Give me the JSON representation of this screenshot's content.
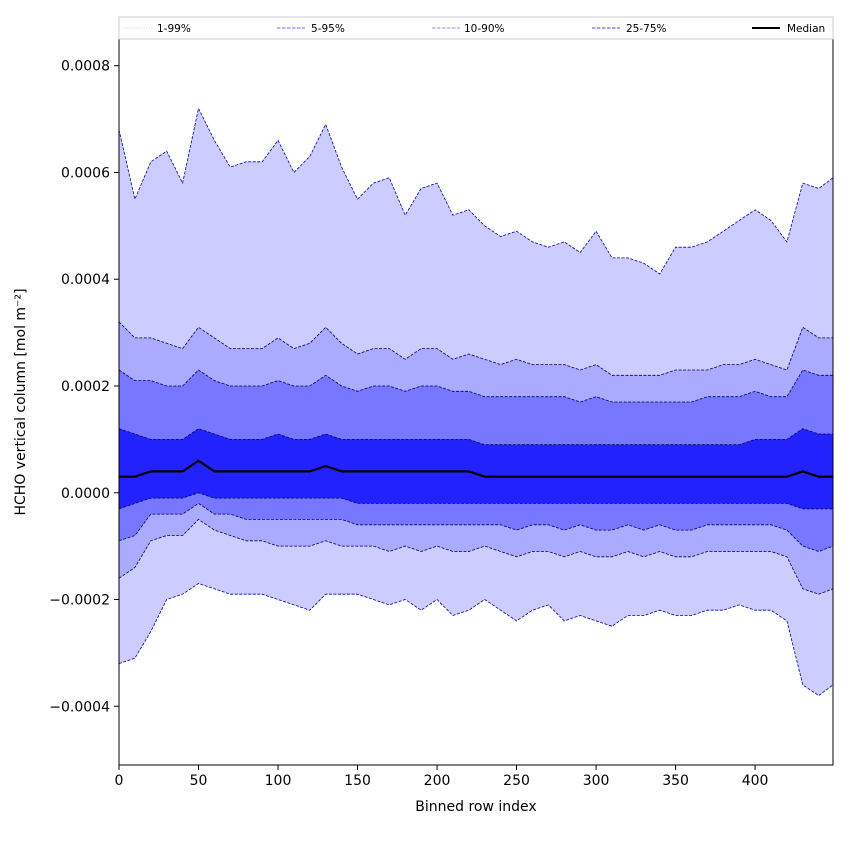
{
  "chart_data": {
    "type": "area",
    "title": "",
    "xlabel": "Binned row index",
    "ylabel": "HCHO vertical column [mol m⁻²]",
    "xlim": [
      0,
      449
    ],
    "ylim": [
      -0.00051,
      0.00085
    ],
    "x_ticks": [
      0,
      50,
      100,
      150,
      200,
      250,
      300,
      350,
      400
    ],
    "x_tick_labels": [
      "0",
      "50",
      "100",
      "150",
      "200",
      "250",
      "300",
      "350",
      "400"
    ],
    "y_ticks": [
      -0.0004,
      -0.0002,
      0.0,
      0.0002,
      0.0004,
      0.0006,
      0.0008
    ],
    "y_tick_labels": [
      "−0.0004",
      "−0.0002",
      "0.0000",
      "0.0002",
      "0.0004",
      "0.0006",
      "0.0008"
    ],
    "grid": false,
    "legend_position": "top, spanning full width",
    "legend": [
      {
        "label": "1-99%",
        "style": "dotted",
        "color": "#ccccff"
      },
      {
        "label": "5-95%",
        "style": "dashed",
        "color": "#6666ff"
      },
      {
        "label": "10-90%",
        "style": "dashed",
        "color": "#8888ff"
      },
      {
        "label": "25-75%",
        "style": "dashed",
        "color": "#4444ff"
      },
      {
        "label": "Median",
        "style": "solid",
        "color": "#000000"
      }
    ],
    "x": [
      0,
      10,
      20,
      30,
      40,
      50,
      60,
      70,
      80,
      90,
      100,
      110,
      120,
      130,
      140,
      150,
      160,
      170,
      180,
      190,
      200,
      210,
      220,
      230,
      240,
      250,
      260,
      270,
      280,
      290,
      300,
      310,
      320,
      330,
      340,
      350,
      360,
      370,
      380,
      390,
      400,
      410,
      420,
      430,
      440,
      449
    ],
    "bands": [
      {
        "name": "1-99%",
        "color": "#ccccff",
        "lower": [
          -0.00032,
          -0.00031,
          -0.00026,
          -0.0002,
          -0.00019,
          -0.00017,
          -0.00018,
          -0.00019,
          -0.00019,
          -0.00019,
          -0.0002,
          -0.00021,
          -0.00022,
          -0.00019,
          -0.00019,
          -0.00019,
          -0.0002,
          -0.00021,
          -0.0002,
          -0.00022,
          -0.0002,
          -0.00023,
          -0.00022,
          -0.0002,
          -0.00022,
          -0.00024,
          -0.00022,
          -0.00021,
          -0.00024,
          -0.00023,
          -0.00024,
          -0.00025,
          -0.00023,
          -0.00023,
          -0.00022,
          -0.00023,
          -0.00023,
          -0.00022,
          -0.00022,
          -0.00021,
          -0.00022,
          -0.00022,
          -0.00024,
          -0.00036,
          -0.00038,
          -0.00036
        ],
        "upper": [
          0.00068,
          0.00055,
          0.00062,
          0.00064,
          0.00058,
          0.00072,
          0.00066,
          0.00061,
          0.00062,
          0.00062,
          0.00066,
          0.0006,
          0.00063,
          0.00069,
          0.00061,
          0.00055,
          0.00058,
          0.00059,
          0.00052,
          0.00057,
          0.00058,
          0.00052,
          0.00053,
          0.0005,
          0.00048,
          0.00049,
          0.00047,
          0.00046,
          0.00047,
          0.00045,
          0.00049,
          0.00044,
          0.00044,
          0.00043,
          0.00041,
          0.00046,
          0.00046,
          0.00047,
          0.00049,
          0.00051,
          0.00053,
          0.00051,
          0.00047,
          0.00058,
          0.00057,
          0.00059
        ]
      },
      {
        "name": "5-95%",
        "color": "#aaaaff",
        "lower": [
          -0.00016,
          -0.00014,
          -9e-05,
          -8e-05,
          -8e-05,
          -5e-05,
          -7e-05,
          -8e-05,
          -9e-05,
          -9e-05,
          -0.0001,
          -0.0001,
          -0.0001,
          -9e-05,
          -0.0001,
          -0.0001,
          -0.0001,
          -0.00011,
          -0.0001,
          -0.00011,
          -0.0001,
          -0.00011,
          -0.00011,
          -0.0001,
          -0.00011,
          -0.00012,
          -0.00011,
          -0.00011,
          -0.00012,
          -0.00011,
          -0.00012,
          -0.00012,
          -0.00011,
          -0.00012,
          -0.00011,
          -0.00012,
          -0.00012,
          -0.00011,
          -0.00011,
          -0.00011,
          -0.00011,
          -0.00011,
          -0.00012,
          -0.00018,
          -0.00019,
          -0.00018
        ],
        "upper": [
          0.00032,
          0.00029,
          0.00029,
          0.00028,
          0.00027,
          0.00031,
          0.00029,
          0.00027,
          0.00027,
          0.00027,
          0.00029,
          0.00027,
          0.00028,
          0.00031,
          0.00028,
          0.00026,
          0.00027,
          0.00027,
          0.00025,
          0.00027,
          0.00027,
          0.00025,
          0.00026,
          0.00025,
          0.00024,
          0.00025,
          0.00024,
          0.00024,
          0.00024,
          0.00023,
          0.00024,
          0.00022,
          0.00022,
          0.00022,
          0.00022,
          0.00023,
          0.00023,
          0.00023,
          0.00024,
          0.00024,
          0.00025,
          0.00024,
          0.00023,
          0.00031,
          0.00029,
          0.00029
        ]
      },
      {
        "name": "10-90%",
        "color": "#7777ff",
        "lower": [
          -9e-05,
          -8e-05,
          -4e-05,
          -4e-05,
          -4e-05,
          -2e-05,
          -4e-05,
          -4e-05,
          -5e-05,
          -5e-05,
          -5e-05,
          -5e-05,
          -5e-05,
          -5e-05,
          -5e-05,
          -6e-05,
          -6e-05,
          -6e-05,
          -6e-05,
          -6e-05,
          -6e-05,
          -6e-05,
          -6e-05,
          -6e-05,
          -6e-05,
          -7e-05,
          -6e-05,
          -6e-05,
          -7e-05,
          -6e-05,
          -7e-05,
          -7e-05,
          -6e-05,
          -7e-05,
          -6e-05,
          -7e-05,
          -7e-05,
          -6e-05,
          -6e-05,
          -6e-05,
          -6e-05,
          -6e-05,
          -7e-05,
          -0.0001,
          -0.00011,
          -0.0001
        ],
        "upper": [
          0.00023,
          0.00021,
          0.00021,
          0.0002,
          0.0002,
          0.00023,
          0.00021,
          0.0002,
          0.0002,
          0.0002,
          0.00021,
          0.0002,
          0.0002,
          0.00022,
          0.0002,
          0.00019,
          0.0002,
          0.0002,
          0.00019,
          0.0002,
          0.0002,
          0.00019,
          0.00019,
          0.00018,
          0.00018,
          0.00018,
          0.00018,
          0.00018,
          0.00018,
          0.00017,
          0.00018,
          0.00017,
          0.00017,
          0.00017,
          0.00017,
          0.00017,
          0.00017,
          0.00018,
          0.00018,
          0.00018,
          0.00019,
          0.00018,
          0.00018,
          0.00023,
          0.00022,
          0.00022
        ]
      },
      {
        "name": "25-75%",
        "color": "#2222ff",
        "lower": [
          -3e-05,
          -2e-05,
          -1e-05,
          -1e-05,
          -1e-05,
          0.0,
          -1e-05,
          -1e-05,
          -1e-05,
          -1e-05,
          -1e-05,
          -1e-05,
          -1e-05,
          -1e-05,
          -1e-05,
          -2e-05,
          -2e-05,
          -2e-05,
          -2e-05,
          -2e-05,
          -2e-05,
          -2e-05,
          -2e-05,
          -2e-05,
          -2e-05,
          -2e-05,
          -2e-05,
          -2e-05,
          -2e-05,
          -2e-05,
          -2e-05,
          -2e-05,
          -2e-05,
          -2e-05,
          -2e-05,
          -2e-05,
          -2e-05,
          -2e-05,
          -2e-05,
          -2e-05,
          -2e-05,
          -2e-05,
          -2e-05,
          -3e-05,
          -3e-05,
          -3e-05
        ],
        "upper": [
          0.00012,
          0.00011,
          0.0001,
          0.0001,
          0.0001,
          0.00012,
          0.00011,
          0.0001,
          0.0001,
          0.0001,
          0.00011,
          0.0001,
          0.0001,
          0.00011,
          0.0001,
          0.0001,
          0.0001,
          0.0001,
          0.0001,
          0.0001,
          0.0001,
          0.0001,
          0.0001,
          9e-05,
          9e-05,
          9e-05,
          9e-05,
          9e-05,
          9e-05,
          9e-05,
          9e-05,
          9e-05,
          9e-05,
          9e-05,
          9e-05,
          9e-05,
          9e-05,
          9e-05,
          9e-05,
          9e-05,
          0.0001,
          0.0001,
          0.0001,
          0.00012,
          0.00011,
          0.00011
        ]
      }
    ],
    "median": [
      3e-05,
      3e-05,
      4e-05,
      4e-05,
      4e-05,
      6e-05,
      4e-05,
      4e-05,
      4e-05,
      4e-05,
      4e-05,
      4e-05,
      4e-05,
      5e-05,
      4e-05,
      4e-05,
      4e-05,
      4e-05,
      4e-05,
      4e-05,
      4e-05,
      4e-05,
      4e-05,
      3e-05,
      3e-05,
      3e-05,
      3e-05,
      3e-05,
      3e-05,
      3e-05,
      3e-05,
      3e-05,
      3e-05,
      3e-05,
      3e-05,
      3e-05,
      3e-05,
      3e-05,
      3e-05,
      3e-05,
      3e-05,
      3e-05,
      3e-05,
      4e-05,
      3e-05,
      3e-05
    ]
  }
}
